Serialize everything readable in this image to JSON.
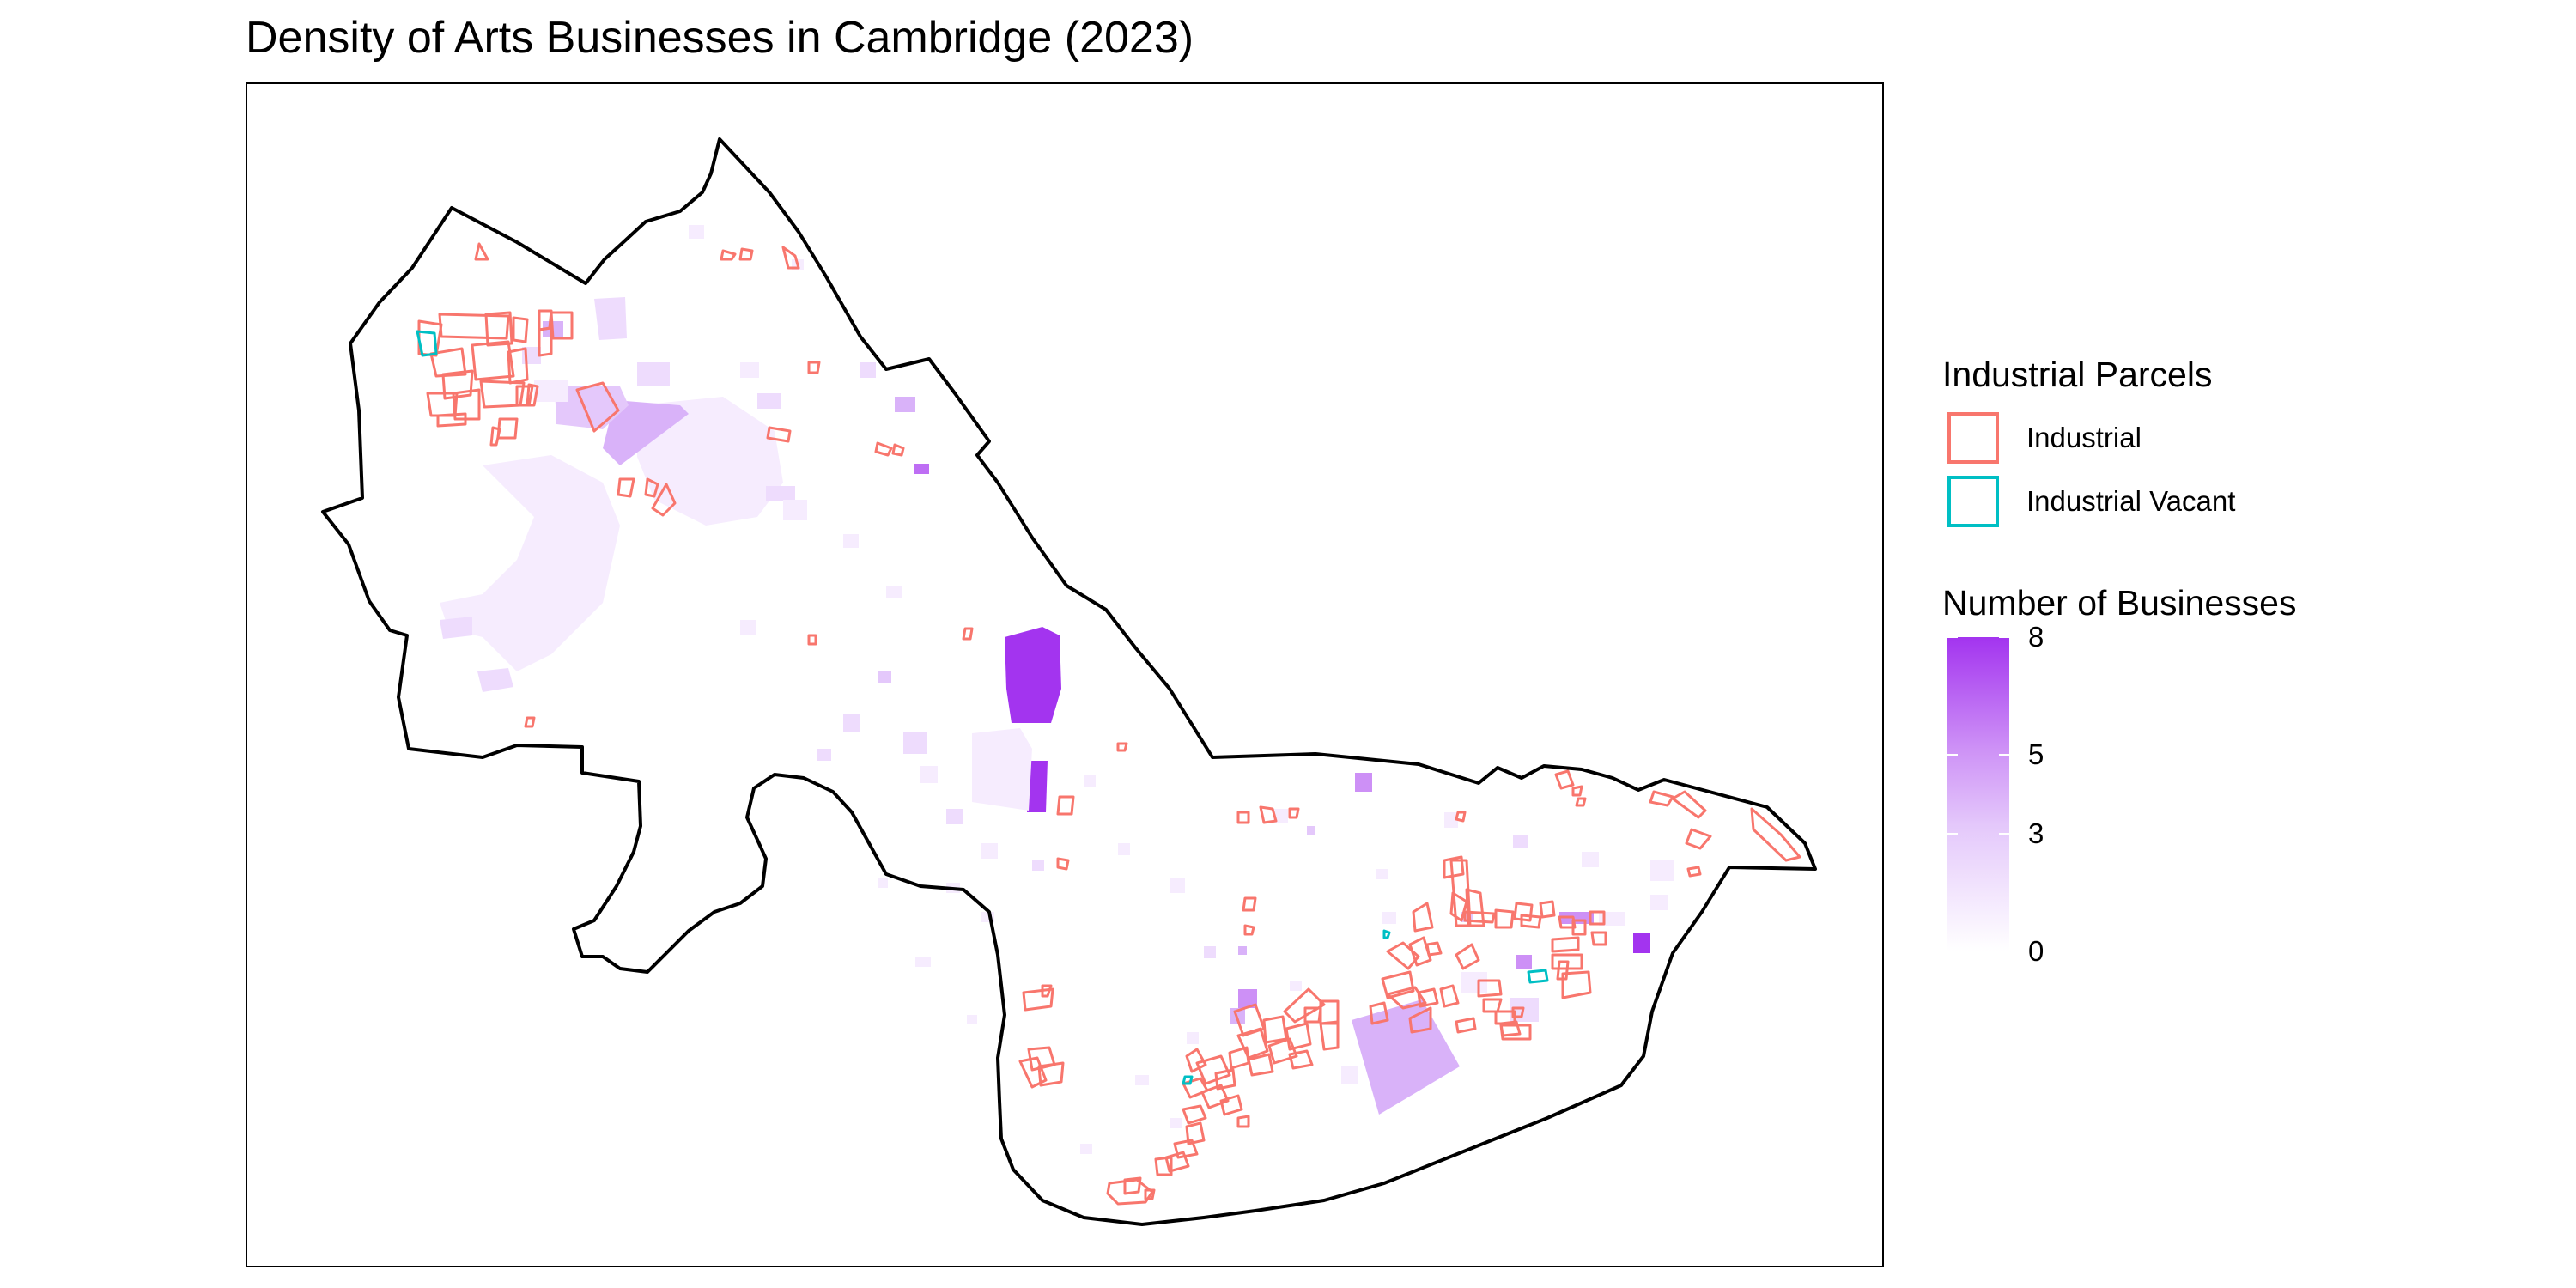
{
  "title": "Density of Arts Businesses in Cambridge (2023)",
  "colors": {
    "industrial": "#F8766D",
    "industrial_vacant": "#00BFC4",
    "boundary": "#000000",
    "fill_max": "#A334EF",
    "fill_min": "#FFFFFF"
  },
  "legend": {
    "parcels": {
      "title": "Industrial Parcels",
      "items": [
        {
          "label": "Industrial",
          "color": "#F8766D"
        },
        {
          "label": "Industrial Vacant",
          "color": "#00BFC4"
        }
      ]
    },
    "businesses": {
      "title": "Number of Businesses",
      "min": 0,
      "max": 8,
      "ticks": [
        {
          "value": 0,
          "label": "0"
        },
        {
          "value": 3,
          "label": "3"
        },
        {
          "value": 5,
          "label": "5"
        },
        {
          "value": 8,
          "label": "8"
        }
      ]
    }
  }
}
